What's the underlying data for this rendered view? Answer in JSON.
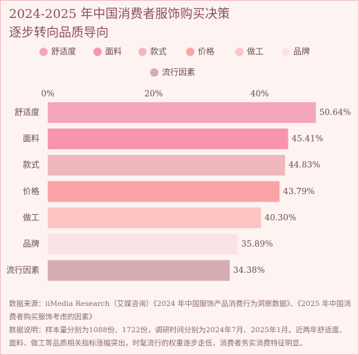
{
  "chart_data": {
    "type": "bar",
    "orientation": "horizontal",
    "title": [
      "2024-2025 年中国消费者服饰购买决策",
      "逐步转向品质导向"
    ],
    "categories": [
      "舒适度",
      "面料",
      "款式",
      "价格",
      "做工",
      "品牌",
      "流行因素"
    ],
    "values": [
      50.64,
      45.41,
      44.83,
      43.79,
      40.3,
      35.89,
      34.38
    ],
    "value_labels": [
      "50.64%",
      "45.41%",
      "44.83%",
      "43.79%",
      "40.30%",
      "35.89%",
      "34.38%"
    ],
    "colors": [
      "#f4a7ba",
      "#f895ad",
      "#efb7be",
      "#faa3a6",
      "#fcc4c2",
      "#fbe3e5",
      "#d5adb2"
    ],
    "xlim": [
      0,
      55
    ],
    "xticks": [
      {
        "value": 0,
        "label": "0%"
      },
      {
        "value": 20,
        "label": "20%"
      },
      {
        "value": 40,
        "label": "40%"
      }
    ],
    "grid": false,
    "legend": "top",
    "notes": [
      "数据来源：iiMedia Research（艾媒咨询）《2024 年中国服饰产品消费行为洞察数据》、《2025 年中国消费者购买服饰考虑的因素》",
      "数据说明：样本量分别为1088份、1722份，调研时间分别为2024年7月、2025年1月。近两年舒适度、面料、做工等品质相关指标涨幅突出，时髦流行的权重逐步走低，消费者务实消费特征明显。"
    ]
  }
}
